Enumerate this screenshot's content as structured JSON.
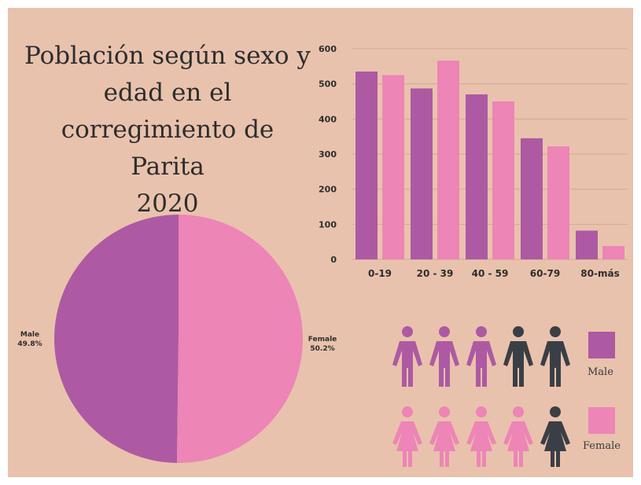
{
  "title_lines": [
    "Población según sexo y",
    "edad en el",
    "corregimiento de Parita",
    "2020"
  ],
  "colors": {
    "male": "#ad5aa3",
    "female": "#ed85b6",
    "dark": "#3a3f46",
    "background": "#e9c2ad"
  },
  "chart_data": [
    {
      "type": "bar",
      "categories": [
        "0-19",
        "20 - 39",
        "40 - 59",
        "60-79",
        "80-más"
      ],
      "series": [
        {
          "values": [
            535,
            487,
            470,
            345,
            82
          ]
        },
        {
          "values": [
            525,
            566,
            450,
            322,
            38
          ]
        }
      ],
      "yticks": [
        0,
        100,
        200,
        300,
        400,
        500,
        600
      ],
      "ylim": [
        0,
        600
      ],
      "grid": true
    },
    {
      "type": "pie",
      "slices": [
        {
          "name": "Male",
          "label": "49.8%",
          "value": 49.8
        },
        {
          "name": "Female",
          "label": "50.2%",
          "value": 50.2
        }
      ]
    }
  ],
  "pictogram": {
    "male_row": {
      "highlighted": 3,
      "total": 5
    },
    "female_row": {
      "highlighted": 4,
      "total": 5
    }
  },
  "legend": {
    "male_label": "Male",
    "female_label": "Female"
  }
}
